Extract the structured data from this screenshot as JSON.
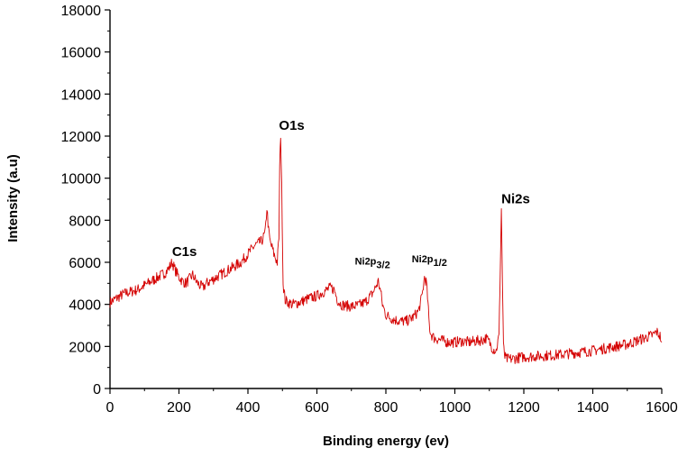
{
  "chart_data": {
    "type": "line",
    "title": "",
    "xlabel": "Binding energy (ev)",
    "ylabel": "Intensity (a.u)",
    "xlim": [
      0,
      1600
    ],
    "ylim": [
      0,
      18000
    ],
    "x_ticks": [
      0,
      200,
      400,
      600,
      800,
      1000,
      1200,
      1400,
      1600
    ],
    "y_ticks": [
      0,
      2000,
      4000,
      6000,
      8000,
      10000,
      12000,
      14000,
      16000,
      18000
    ],
    "grid": false,
    "legend": "none",
    "colors": {
      "series": "#d40000"
    },
    "series": [
      {
        "x": [
          0,
          20,
          40,
          60,
          80,
          100,
          120,
          140,
          160,
          170,
          180,
          190,
          200,
          210,
          220,
          230,
          240,
          250,
          260,
          270,
          280,
          300,
          320,
          340,
          360,
          380,
          400,
          420,
          440,
          450,
          455,
          460,
          465,
          470,
          475,
          480,
          485,
          490,
          492,
          495,
          498,
          502,
          508,
          515,
          530,
          550,
          580,
          600,
          620,
          640,
          650,
          660,
          670,
          680,
          700,
          720,
          740,
          760,
          770,
          778,
          785,
          790,
          800,
          820,
          840,
          860,
          880,
          895,
          905,
          912,
          918,
          922,
          926,
          930,
          940,
          960,
          980,
          1000,
          1020,
          1040,
          1060,
          1080,
          1090,
          1100,
          1110,
          1120,
          1128,
          1132,
          1135,
          1138,
          1141,
          1145,
          1150,
          1160,
          1200,
          1250,
          1300,
          1350,
          1400,
          1450,
          1500,
          1550,
          1575,
          1585,
          1595,
          1600
        ],
        "y": [
          4100,
          4300,
          4500,
          4600,
          4700,
          4900,
          5100,
          5300,
          5500,
          5700,
          6000,
          5600,
          5300,
          5100,
          5000,
          5200,
          5400,
          5100,
          4900,
          4800,
          5000,
          5200,
          5400,
          5600,
          5800,
          6000,
          6400,
          6800,
          7000,
          7400,
          8600,
          7500,
          6900,
          6700,
          6400,
          6200,
          6000,
          7200,
          10500,
          12100,
          9500,
          5000,
          4200,
          4100,
          4000,
          4100,
          4300,
          4400,
          4600,
          4800,
          4700,
          4200,
          4000,
          3950,
          3900,
          3950,
          4100,
          4500,
          4800,
          5100,
          4600,
          4000,
          3500,
          3300,
          3200,
          3200,
          3400,
          3700,
          4400,
          5300,
          5000,
          4000,
          3000,
          2600,
          2400,
          2300,
          2200,
          2200,
          2250,
          2200,
          2250,
          2300,
          2400,
          2200,
          1900,
          1800,
          2500,
          6000,
          8600,
          5000,
          2000,
          1500,
          1400,
          1400,
          1500,
          1550,
          1600,
          1700,
          1800,
          1950,
          2100,
          2400,
          2550,
          2700,
          2500,
          2200
        ]
      }
    ],
    "annotations": [
      {
        "text": "C1s",
        "x": 180,
        "y": 6300
      },
      {
        "text": "O1s",
        "x": 490,
        "y": 12300
      },
      {
        "text": "Ni2p",
        "sub": "3/2",
        "x": 710,
        "y": 5900
      },
      {
        "text": "Ni2p",
        "sub": "1/2",
        "x": 875,
        "y": 6000
      },
      {
        "text": "Ni2s",
        "x": 1135,
        "y": 8800
      }
    ]
  }
}
